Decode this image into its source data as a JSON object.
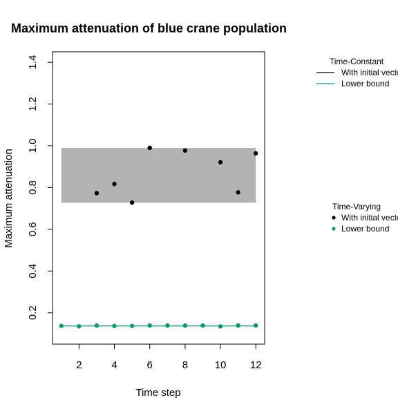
{
  "chart_data": {
    "type": "scatter",
    "title": "Maximum attenuation of blue crane population",
    "xlabel": "Time step",
    "ylabel": "Maximum attenuation",
    "xlim": [
      0.5,
      12.5
    ],
    "ylim": [
      0.05,
      1.45
    ],
    "x_ticks": [
      2,
      4,
      6,
      8,
      10,
      12
    ],
    "y_ticks": [
      0.2,
      0.4,
      0.6,
      0.8,
      1.0,
      1.2,
      1.4
    ],
    "x_tick_labels": [
      "2",
      "4",
      "6",
      "8",
      "10",
      "12"
    ],
    "y_tick_labels": [
      "0.2",
      "0.4",
      "0.6",
      "0.8",
      "1.0",
      "1.2",
      "1.4"
    ],
    "band": {
      "x_from": 1,
      "x_to": 12,
      "y_low": 0.727,
      "y_high": 0.99,
      "color": "#b3b3b3"
    },
    "series": [
      {
        "name": "With initial vector",
        "group": "Time-Varying",
        "color": "#000000",
        "x": [
          3,
          4,
          5,
          6,
          8,
          10,
          11,
          12
        ],
        "values": [
          0.773,
          0.817,
          0.728,
          0.99,
          0.977,
          0.921,
          0.777,
          0.964
        ]
      },
      {
        "name": "Lower bound",
        "group": "Time-Varying",
        "color": "#009e73",
        "x": [
          1,
          2,
          3,
          4,
          5,
          6,
          7,
          8,
          9,
          10,
          11,
          12
        ],
        "values": [
          0.137,
          0.135,
          0.139,
          0.137,
          0.137,
          0.139,
          0.139,
          0.139,
          0.139,
          0.135,
          0.139,
          0.139
        ]
      },
      {
        "name": "Lower bound",
        "group": "Time-Constant",
        "color": "#009e73",
        "line": true,
        "x": [
          1,
          12
        ],
        "values": [
          0.137,
          0.137
        ]
      }
    ],
    "legend": [
      {
        "title": "Time-Constant",
        "entries": [
          {
            "label": "With initial vector",
            "color": "#000000",
            "symbol": "line"
          },
          {
            "label": "Lower bound",
            "color": "#009e73",
            "symbol": "line"
          }
        ]
      },
      {
        "title": "Time-Varying",
        "entries": [
          {
            "label": "With initial vector",
            "color": "#000000",
            "symbol": "point"
          },
          {
            "label": "Lower bound",
            "color": "#009e73",
            "symbol": "point"
          }
        ]
      }
    ],
    "legend_position": "right",
    "grid": false
  }
}
